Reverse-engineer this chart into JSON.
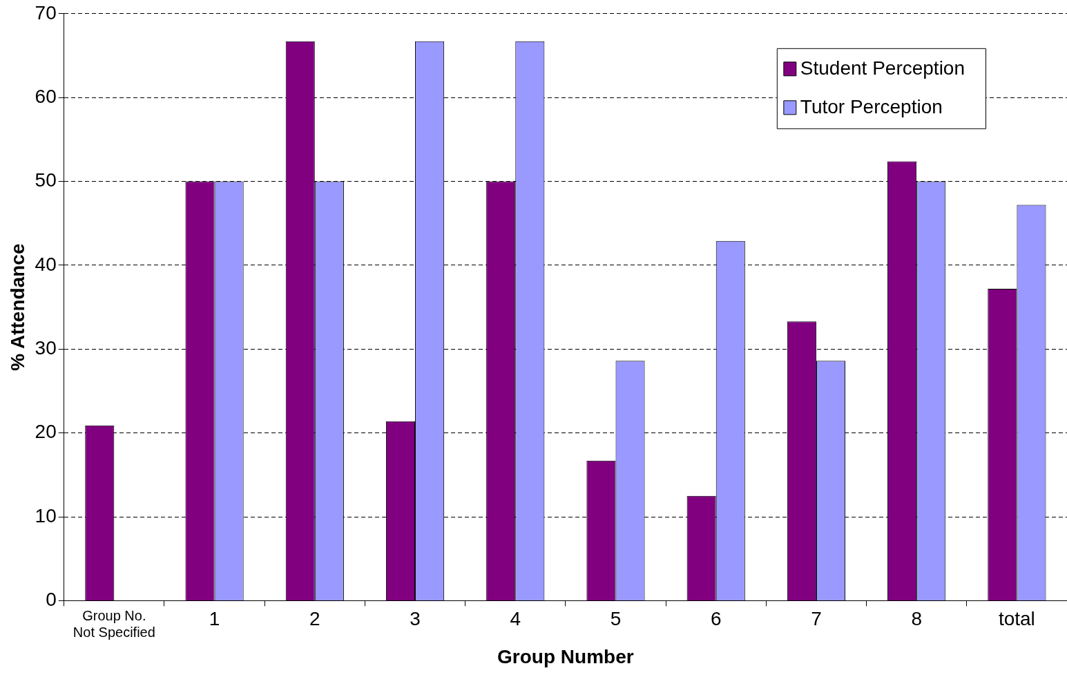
{
  "chart_data": {
    "type": "bar",
    "xlabel": "Group Number",
    "ylabel": "% Attendance",
    "categories": [
      "Group No.\nNot Specified",
      "1",
      "2",
      "3",
      "4",
      "5",
      "6",
      "7",
      "8",
      "total"
    ],
    "series": [
      {
        "name": "Student Perception",
        "color": "#800080",
        "values": [
          20.9,
          50,
          66.7,
          21.4,
          50,
          16.7,
          12.5,
          33.3,
          52.4,
          37.2
        ]
      },
      {
        "name": "Tutor Perception",
        "color": "#9999ff",
        "values": [
          null,
          50,
          50,
          66.7,
          66.7,
          28.6,
          42.9,
          28.6,
          50,
          47.2
        ]
      }
    ],
    "ylim": [
      0,
      70
    ],
    "yticks": [
      0,
      10,
      20,
      30,
      40,
      50,
      60,
      70
    ],
    "grid": "y",
    "legend": "top right"
  }
}
